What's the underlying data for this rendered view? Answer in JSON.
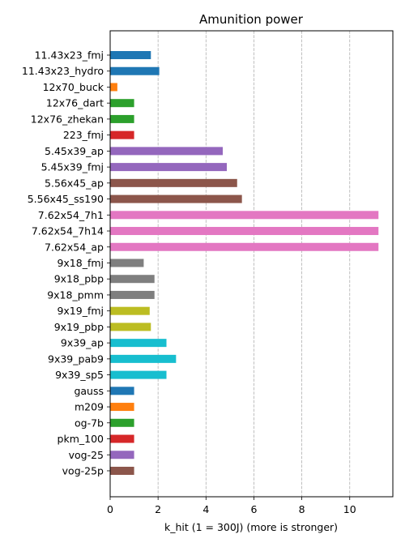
{
  "chart_data": {
    "type": "bar",
    "orientation": "horizontal",
    "title": "Amunition power",
    "xlabel": "k_hit (1 = 300J) (more is stronger)",
    "ylabel": "",
    "xlim": [
      0,
      11.8
    ],
    "xticks": [
      0,
      2,
      4,
      6,
      8,
      10
    ],
    "grid": "vertical dashed",
    "categories": [
      "11.43x23_fmj",
      "11.43x23_hydro",
      "12x70_buck",
      "12x76_dart",
      "12x76_zhekan",
      "223_fmj",
      "5.45x39_ap",
      "5.45x39_fmj",
      "5.56x45_ap",
      "5.56x45_ss190",
      "7.62x54_7h1",
      "7.62x54_7h14",
      "7.62x54_ap",
      "9x18_fmj",
      "9x18_pbp",
      "9x18_pmm",
      "9x19_fmj",
      "9x19_pbp",
      "9x39_ap",
      "9x39_pab9",
      "9x39_sp5",
      "gauss",
      "m209",
      "og-7b",
      "pkm_100",
      "vog-25",
      "vog-25p"
    ],
    "values": [
      1.7,
      2.05,
      0.3,
      1.0,
      1.0,
      1.0,
      4.7,
      4.87,
      5.3,
      5.5,
      11.2,
      11.2,
      11.2,
      1.4,
      1.85,
      1.85,
      1.65,
      1.7,
      2.35,
      2.75,
      2.35,
      1.0,
      1.0,
      1.0,
      1.0,
      1.0,
      1.0
    ],
    "colors": [
      "#1f77b4",
      "#1f77b4",
      "#ff7f0e",
      "#2ca02c",
      "#2ca02c",
      "#d62728",
      "#9467bd",
      "#9467bd",
      "#8c564b",
      "#8c564b",
      "#e377c2",
      "#e377c2",
      "#e377c2",
      "#7f7f7f",
      "#7f7f7f",
      "#7f7f7f",
      "#bcbd22",
      "#bcbd22",
      "#17becf",
      "#17becf",
      "#17becf",
      "#1f77b4",
      "#ff7f0e",
      "#2ca02c",
      "#d62728",
      "#9467bd",
      "#8c564b"
    ]
  }
}
